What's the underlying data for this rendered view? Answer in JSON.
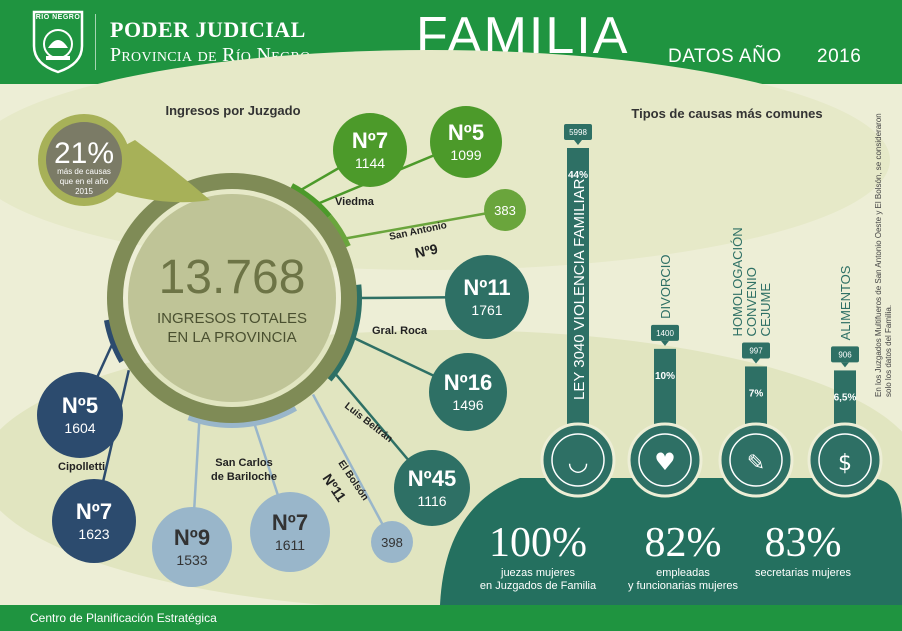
{
  "header": {
    "seal_text": "RIO NEGRO",
    "title_line1": "PODER JUDICIAL",
    "title_line2": "Provincia de Río Negro",
    "main_title": "FAMILIA",
    "subtitle": "DATOS AÑO",
    "year": "2016"
  },
  "footer": {
    "label": "Centro de Planificación Estratégica"
  },
  "side_note": "En los Juzgados Multifueros de San Antonio Oeste y El Bolsón, se consideraron solo los datos del Familia.",
  "colors": {
    "header_green": "#1f9440",
    "viedma": "#4c9a2a",
    "san_antonio": "#6aa53c",
    "gral_roca": "#2e7065",
    "cipolletti": "#2c4b6e",
    "bariloche": "#99b6ca",
    "ring": "#7f8b56",
    "center": "#bfc497",
    "cases": "#2e7065",
    "bottom": "#24705f"
  },
  "chart_data": [
    {
      "type": "bubble",
      "title": "Ingresos por Juzgado",
      "total": "13.768",
      "total_label_line1": "INGRESOS TOTALES",
      "total_label_line2": "EN LA PROVINCIA",
      "growth_value": "21%",
      "growth_line1": "más de causas",
      "growth_line2": "que en el año",
      "growth_line3": "2015",
      "groups": [
        {
          "name": "Viedma",
          "courts": [
            {
              "label": "Nº7",
              "value": 1144
            },
            {
              "label": "Nº5",
              "value": 1099
            }
          ]
        },
        {
          "name": "San Antonio",
          "courts": [
            {
              "label": "Nº9",
              "value": 383
            }
          ]
        },
        {
          "name": "Gral. Roca",
          "courts": [
            {
              "label": "Nº11",
              "value": 1761
            },
            {
              "label": "Nº16",
              "value": 1496
            }
          ]
        },
        {
          "name": "Luis Beltrán",
          "courts": [
            {
              "label": "Nº45",
              "value": 1116
            }
          ]
        },
        {
          "name": "El Bolsón",
          "courts": [
            {
              "label": "Nº11",
              "value": 398
            }
          ]
        },
        {
          "name": "San Carlos de Bariloche",
          "name_line1": "San Carlos",
          "name_line2": "de Bariloche",
          "courts": [
            {
              "label": "Nº9",
              "value": 1533
            },
            {
              "label": "Nº7",
              "value": 1611
            }
          ]
        },
        {
          "name": "Cipolletti",
          "courts": [
            {
              "label": "Nº5",
              "value": 1604
            },
            {
              "label": "Nº7",
              "value": 1623
            }
          ]
        }
      ]
    },
    {
      "type": "bar",
      "title": "Tipos de causas más comunes",
      "categories": [
        "LEY 3040 VIOLENCIA FAMILIAR",
        "DIVORCIO",
        "HOMOLOGACIÓN CONVENIO CEJUME",
        "ALIMENTOS"
      ],
      "values": [
        5998,
        1400,
        997,
        906
      ],
      "percents": [
        "44%",
        "10%",
        "7%",
        "6,5%"
      ],
      "icons": [
        "eye-tear-icon",
        "broken-heart-icon",
        "document-sign-icon",
        "money-food-icon"
      ]
    }
  ],
  "stats": [
    {
      "value": "100%",
      "line1": "juezas mujeres",
      "line2": "en Juzgados de Familia"
    },
    {
      "value": "82%",
      "line1": "empleadas",
      "line2": "y funcionarias mujeres"
    },
    {
      "value": "83%",
      "line1": "secretarias mujeres",
      "line2": ""
    }
  ]
}
